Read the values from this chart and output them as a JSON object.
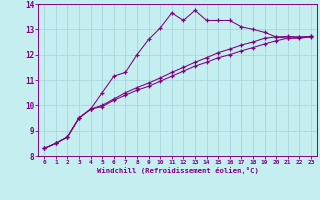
{
  "xlabel": "Windchill (Refroidissement éolien,°C)",
  "xlim": [
    -0.5,
    23.5
  ],
  "ylim": [
    8,
    14
  ],
  "yticks": [
    8,
    9,
    10,
    11,
    12,
    13,
    14
  ],
  "xticks": [
    0,
    1,
    2,
    3,
    4,
    5,
    6,
    7,
    8,
    9,
    10,
    11,
    12,
    13,
    14,
    15,
    16,
    17,
    18,
    19,
    20,
    21,
    22,
    23
  ],
  "background_color": "#c5eef0",
  "line_color": "#800080",
  "grid_color": "#a0d4d8",
  "line1_x": [
    0,
    1,
    2,
    3,
    4,
    5,
    6,
    7,
    8,
    9,
    10,
    11,
    12,
    13,
    14,
    15,
    16,
    17,
    18,
    19,
    20,
    21,
    22,
    23
  ],
  "line1_y": [
    8.3,
    8.5,
    8.75,
    9.5,
    9.85,
    10.5,
    11.15,
    11.3,
    12.0,
    12.6,
    13.05,
    13.65,
    13.35,
    13.75,
    13.35,
    13.35,
    13.35,
    13.1,
    13.0,
    12.88,
    12.7,
    12.65,
    12.65,
    12.7
  ],
  "line2_x": [
    0,
    1,
    2,
    3,
    4,
    5,
    6,
    7,
    8,
    9,
    10,
    11,
    12,
    13,
    14,
    15,
    16,
    17,
    18,
    19,
    20,
    21,
    22,
    23
  ],
  "line2_y": [
    8.3,
    8.5,
    8.75,
    9.5,
    9.85,
    9.95,
    10.2,
    10.4,
    10.6,
    10.75,
    10.95,
    11.15,
    11.35,
    11.55,
    11.7,
    11.88,
    12.0,
    12.15,
    12.28,
    12.42,
    12.55,
    12.65,
    12.68,
    12.72
  ],
  "line3_x": [
    0,
    1,
    2,
    3,
    4,
    5,
    6,
    7,
    8,
    9,
    10,
    11,
    12,
    13,
    14,
    15,
    16,
    17,
    18,
    19,
    20,
    21,
    22,
    23
  ],
  "line3_y": [
    8.3,
    8.5,
    8.75,
    9.5,
    9.85,
    10.0,
    10.25,
    10.5,
    10.7,
    10.88,
    11.08,
    11.3,
    11.5,
    11.7,
    11.88,
    12.08,
    12.22,
    12.38,
    12.5,
    12.65,
    12.7,
    12.72,
    12.7,
    12.72
  ]
}
